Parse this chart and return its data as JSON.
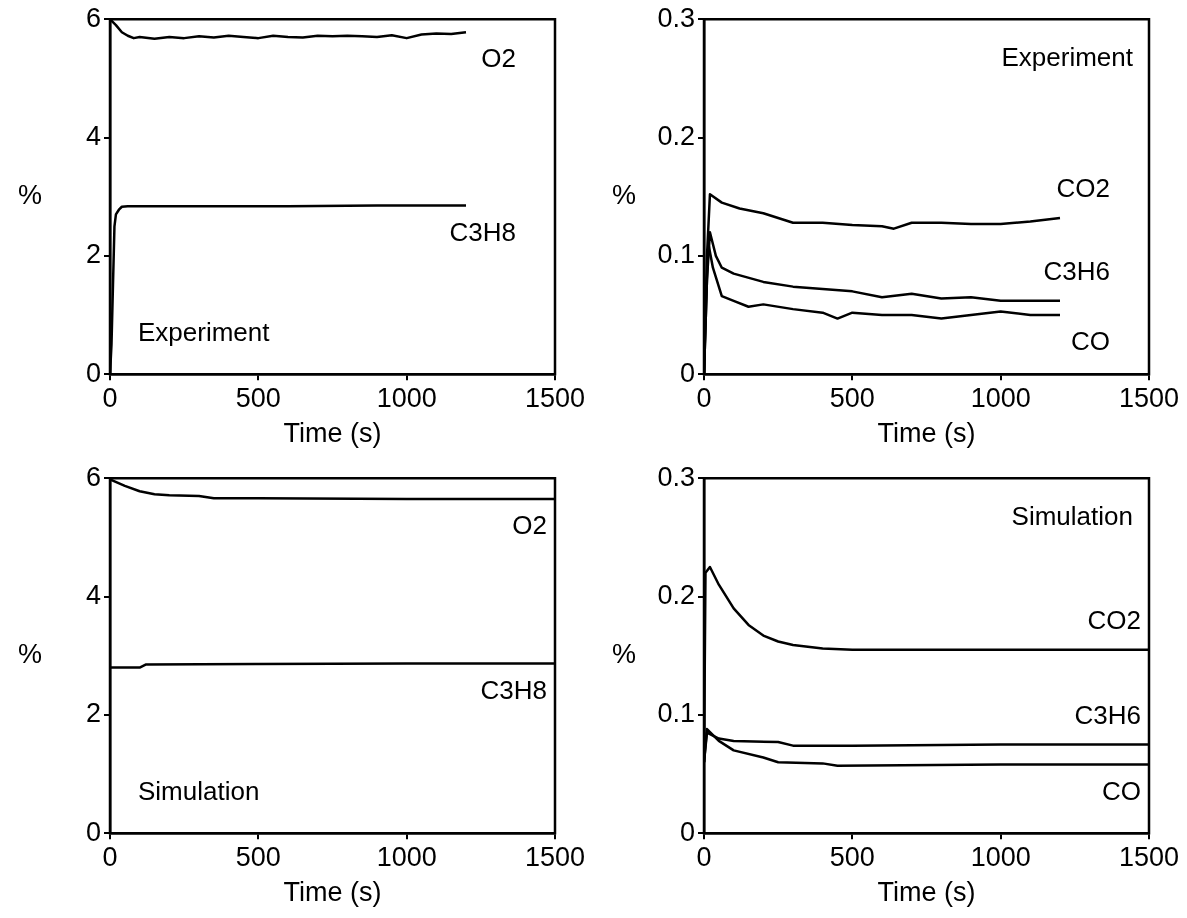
{
  "chart_data": [
    {
      "type": "line",
      "xlabel": "Time (s)",
      "ylabel": "%",
      "annotations": [
        "Experiment"
      ],
      "xlim": [
        0,
        1500
      ],
      "xticks": [
        0,
        500,
        1000,
        1500
      ],
      "ylim": [
        0,
        6
      ],
      "yticks": [
        0,
        2,
        4,
        6
      ],
      "line_style": "solid",
      "series": [
        {
          "name": "O2",
          "color": "#000000",
          "x": [
            0,
            20,
            40,
            60,
            80,
            100,
            150,
            200,
            250,
            300,
            350,
            400,
            450,
            500,
            550,
            600,
            650,
            700,
            750,
            800,
            850,
            900,
            950,
            1000,
            1050,
            1100,
            1150,
            1200
          ],
          "values": [
            6,
            5.9,
            5.78,
            5.72,
            5.68,
            5.7,
            5.67,
            5.7,
            5.68,
            5.71,
            5.69,
            5.72,
            5.7,
            5.68,
            5.72,
            5.7,
            5.69,
            5.72,
            5.71,
            5.72,
            5.71,
            5.7,
            5.73,
            5.68,
            5.74,
            5.76,
            5.75,
            5.78
          ]
        },
        {
          "name": "C3H8",
          "color": "#000000",
          "x": [
            0,
            5,
            10,
            15,
            20,
            30,
            40,
            60,
            100,
            300,
            600,
            900,
            1200
          ],
          "values": [
            0,
            0.5,
            1.5,
            2.5,
            2.7,
            2.78,
            2.83,
            2.84,
            2.84,
            2.84,
            2.84,
            2.85,
            2.85
          ]
        }
      ]
    },
    {
      "type": "line",
      "xlabel": "Time (s)",
      "ylabel": "%",
      "annotations": [
        "Experiment"
      ],
      "xlim": [
        0,
        1500
      ],
      "xticks": [
        0,
        500,
        1000,
        1500
      ],
      "ylim": [
        0,
        0.3
      ],
      "yticks": [
        0,
        0.1,
        0.2,
        0.3
      ],
      "line_style": "solid",
      "series": [
        {
          "name": "CO2",
          "color": "#000000",
          "x": [
            0,
            10,
            20,
            60,
            120,
            200,
            250,
            300,
            400,
            500,
            600,
            640,
            700,
            800,
            900,
            1000,
            1100,
            1200
          ],
          "values": [
            0,
            0.1,
            0.152,
            0.145,
            0.14,
            0.136,
            0.132,
            0.128,
            0.128,
            0.126,
            0.125,
            0.123,
            0.128,
            0.128,
            0.127,
            0.127,
            0.129,
            0.132
          ]
        },
        {
          "name": "C3H6",
          "color": "#000000",
          "x": [
            0,
            10,
            20,
            40,
            60,
            100,
            200,
            300,
            400,
            500,
            600,
            700,
            800,
            900,
            1000,
            1100,
            1200
          ],
          "values": [
            0,
            0.08,
            0.12,
            0.1,
            0.09,
            0.085,
            0.078,
            0.074,
            0.072,
            0.07,
            0.065,
            0.068,
            0.064,
            0.065,
            0.062,
            0.062,
            0.062
          ]
        },
        {
          "name": "CO",
          "color": "#000000",
          "x": [
            0,
            10,
            15,
            30,
            60,
            100,
            150,
            200,
            300,
            400,
            450,
            500,
            600,
            700,
            800,
            900,
            1000,
            1100,
            1200
          ],
          "values": [
            0,
            0.08,
            0.11,
            0.09,
            0.066,
            0.062,
            0.057,
            0.059,
            0.055,
            0.052,
            0.047,
            0.052,
            0.05,
            0.05,
            0.047,
            0.05,
            0.053,
            0.05,
            0.05
          ]
        }
      ]
    },
    {
      "type": "line",
      "xlabel": "Time (s)",
      "ylabel": "%",
      "annotations": [
        "Simulation"
      ],
      "xlim": [
        0,
        1500
      ],
      "xticks": [
        0,
        500,
        1000,
        1500
      ],
      "ylim": [
        0,
        6
      ],
      "yticks": [
        0,
        2,
        4,
        6
      ],
      "line_style": "solid",
      "series": [
        {
          "name": "O2",
          "color": "#000000",
          "x": [
            0,
            50,
            100,
            150,
            200,
            300,
            350,
            500,
            1000,
            1500
          ],
          "values": [
            5.98,
            5.87,
            5.78,
            5.73,
            5.71,
            5.7,
            5.66,
            5.66,
            5.65,
            5.65
          ]
        },
        {
          "name": "C3H8",
          "color": "#000000",
          "x": [
            0,
            100,
            120,
            500,
            1000,
            1500
          ],
          "values": [
            2.8,
            2.8,
            2.85,
            2.86,
            2.87,
            2.87
          ]
        }
      ]
    },
    {
      "type": "line",
      "xlabel": "Time (s)",
      "ylabel": "%",
      "annotations": [
        "Simulation"
      ],
      "xlim": [
        0,
        1500
      ],
      "xticks": [
        0,
        500,
        1000,
        1500
      ],
      "ylim": [
        0,
        0.3
      ],
      "yticks": [
        0,
        0.1,
        0.2,
        0.3
      ],
      "line_style": "solid",
      "series": [
        {
          "name": "CO2",
          "color": "#000000",
          "x": [
            0,
            5,
            20,
            50,
            100,
            150,
            200,
            250,
            300,
            400,
            500,
            1000,
            1500
          ],
          "values": [
            0.06,
            0.22,
            0.225,
            0.21,
            0.19,
            0.176,
            0.167,
            0.162,
            0.159,
            0.156,
            0.155,
            0.155,
            0.155
          ]
        },
        {
          "name": "C3H6",
          "color": "#000000",
          "x": [
            0,
            10,
            50,
            100,
            250,
            300,
            500,
            1000,
            1500
          ],
          "values": [
            0.06,
            0.085,
            0.08,
            0.078,
            0.077,
            0.074,
            0.074,
            0.075,
            0.075
          ]
        },
        {
          "name": "CO",
          "color": "#000000",
          "x": [
            0,
            10,
            50,
            100,
            200,
            250,
            400,
            450,
            1000,
            1500
          ],
          "values": [
            0.06,
            0.088,
            0.078,
            0.07,
            0.064,
            0.06,
            0.059,
            0.057,
            0.058,
            0.058
          ]
        }
      ]
    }
  ]
}
